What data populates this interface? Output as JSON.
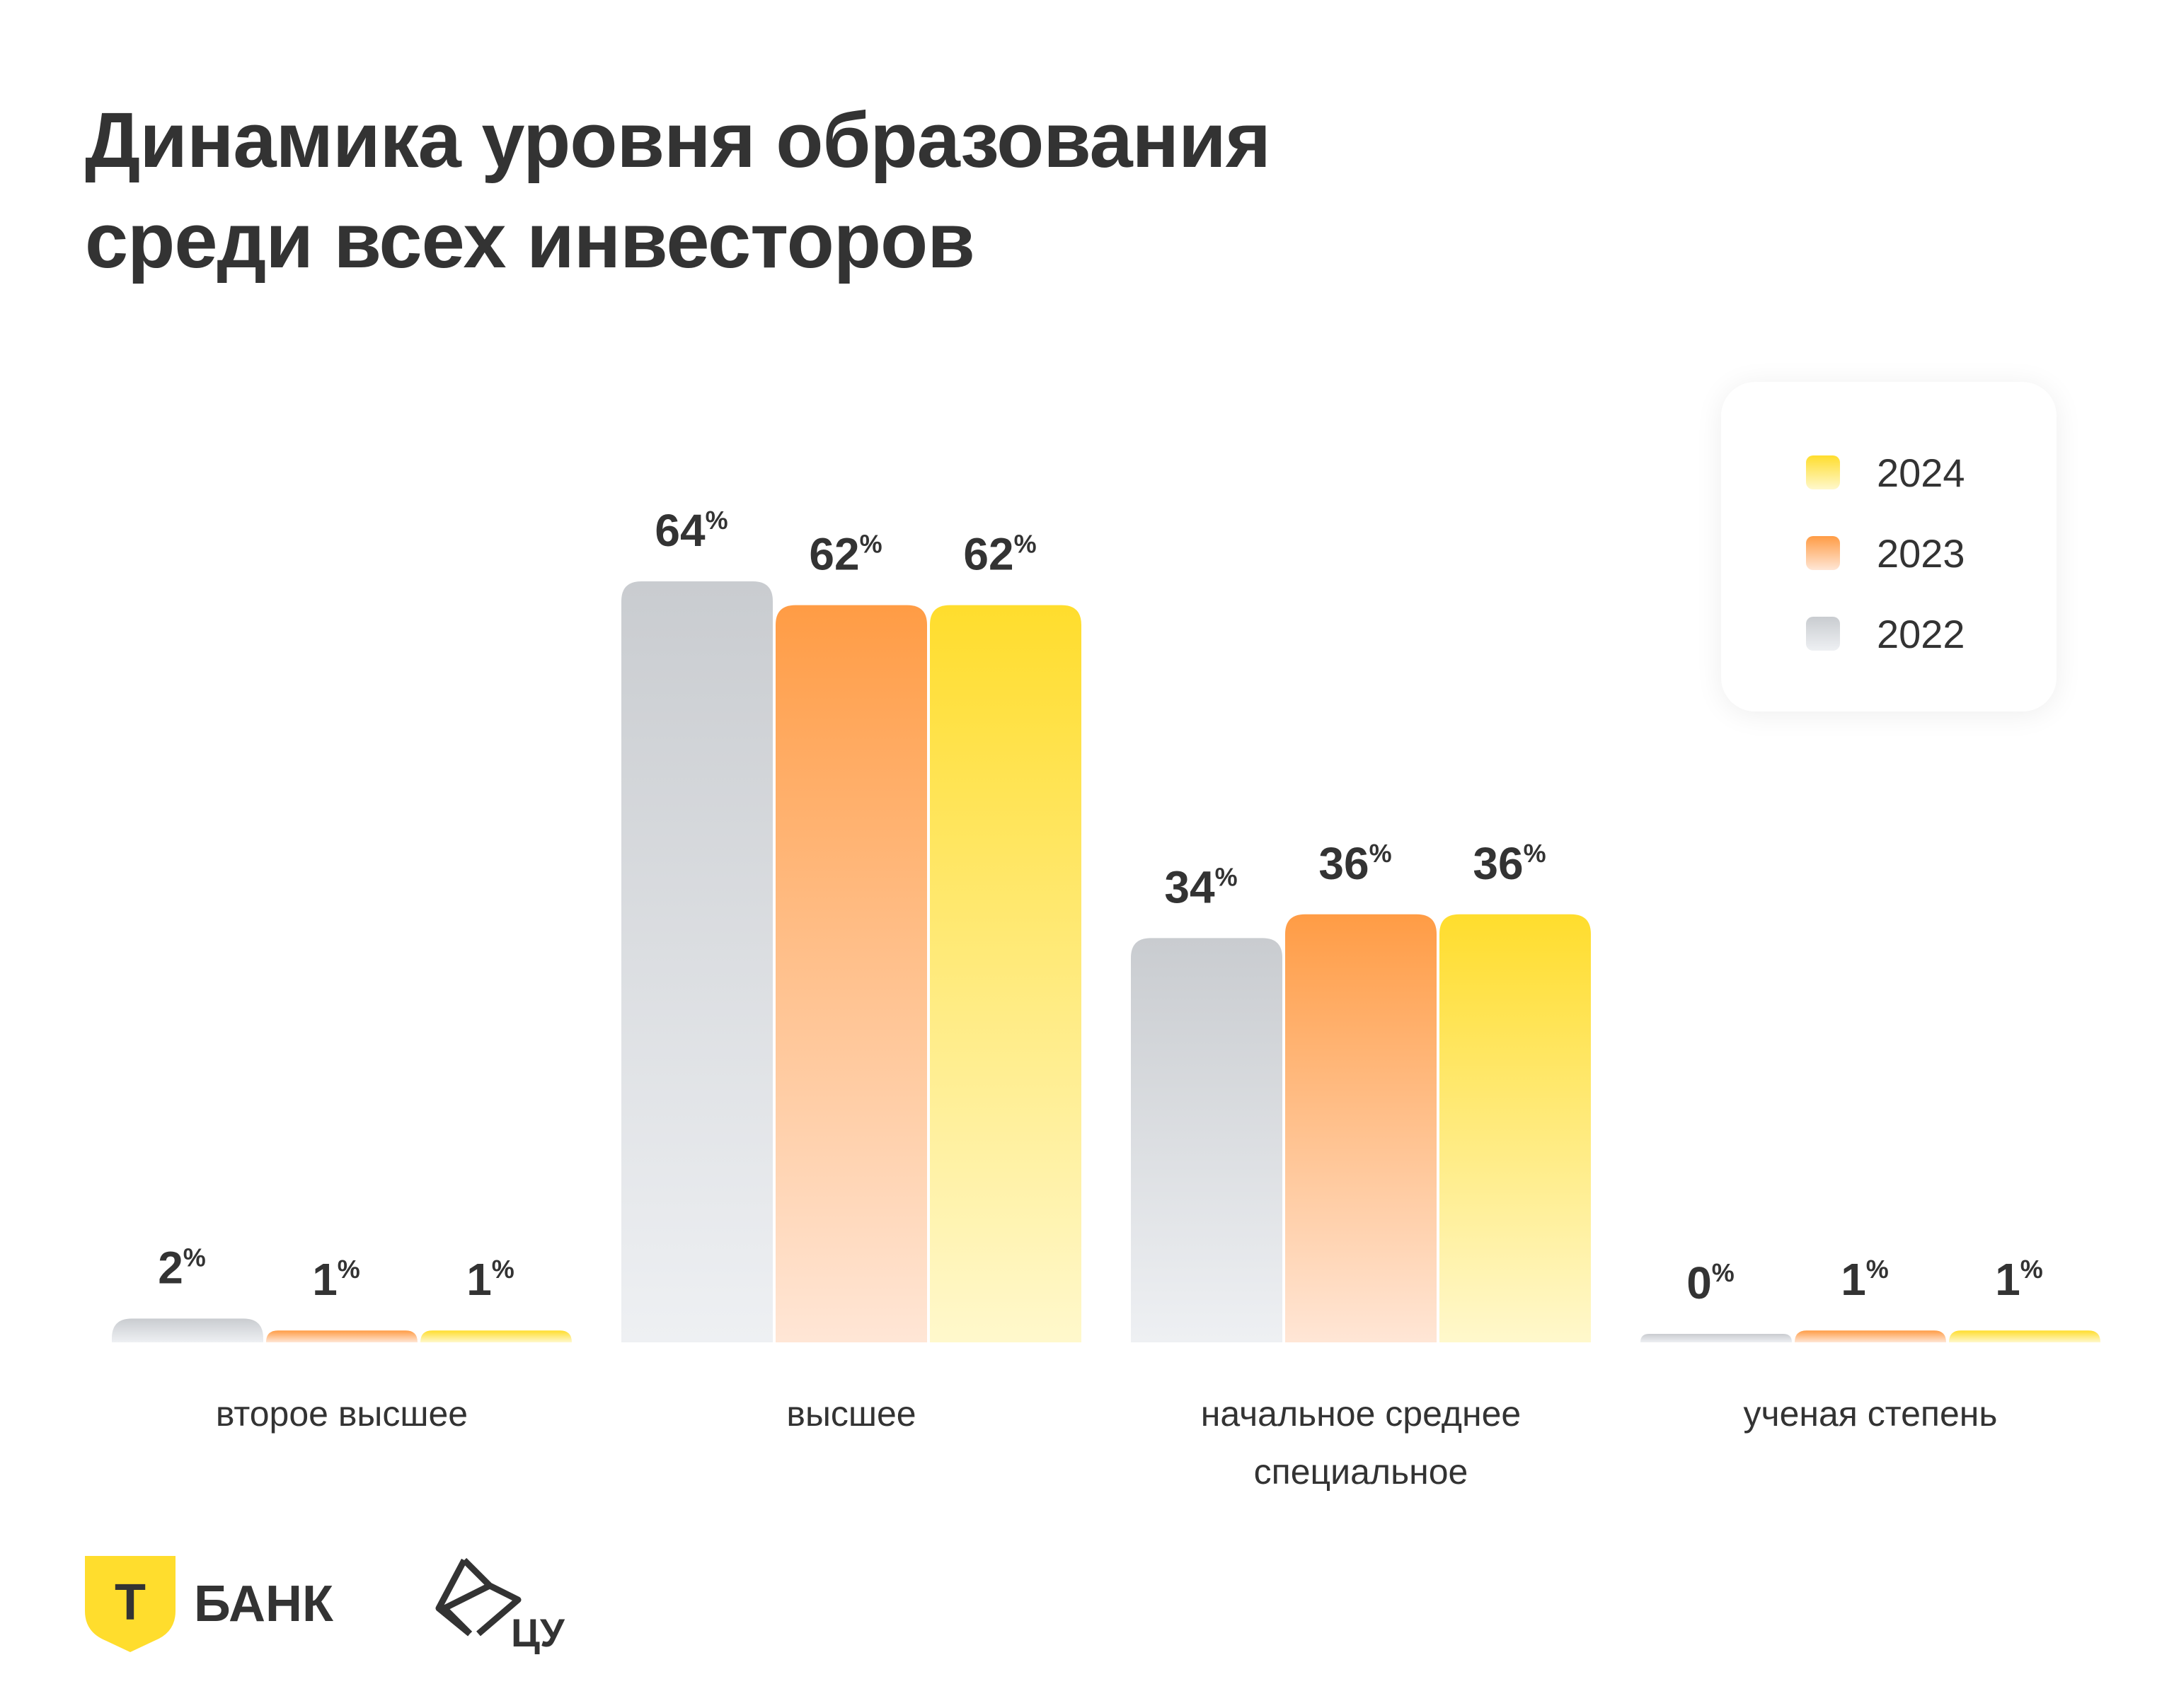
{
  "chart_data": {
    "type": "bar",
    "title": "Динамика уровня образования среди всех инвесторов",
    "title_lines": [
      "Динамика уровня образования",
      "среди всех инвесторов"
    ],
    "categories": [
      [
        "второе высшее"
      ],
      [
        "высшее"
      ],
      [
        "начальное среднее",
        "специальное"
      ],
      [
        "ученая степень"
      ]
    ],
    "series": [
      {
        "name": "2022",
        "values": [
          2,
          64,
          34,
          0
        ],
        "color_top": "#c9ccd0",
        "color_bottom": "#eef0f3"
      },
      {
        "name": "2023",
        "values": [
          1,
          62,
          36,
          1
        ],
        "color_top": "#ff9c45",
        "color_bottom": "#ffe6d6"
      },
      {
        "name": "2024",
        "values": [
          1,
          62,
          36,
          1
        ],
        "color_top": "#ffdd2d",
        "color_bottom": "#fff8cc"
      }
    ],
    "value_suffix": "%",
    "legend_order": [
      "2024",
      "2023",
      "2022"
    ],
    "legend_position": "top-right",
    "ylim": [
      0,
      64
    ],
    "grid": false
  },
  "logos": {
    "bank_mark": "Т",
    "bank_name": "БАНК",
    "cu_name": "ЦУ"
  },
  "colors": {
    "brand_yellow": "#ffdd2d",
    "text": "#333333"
  }
}
